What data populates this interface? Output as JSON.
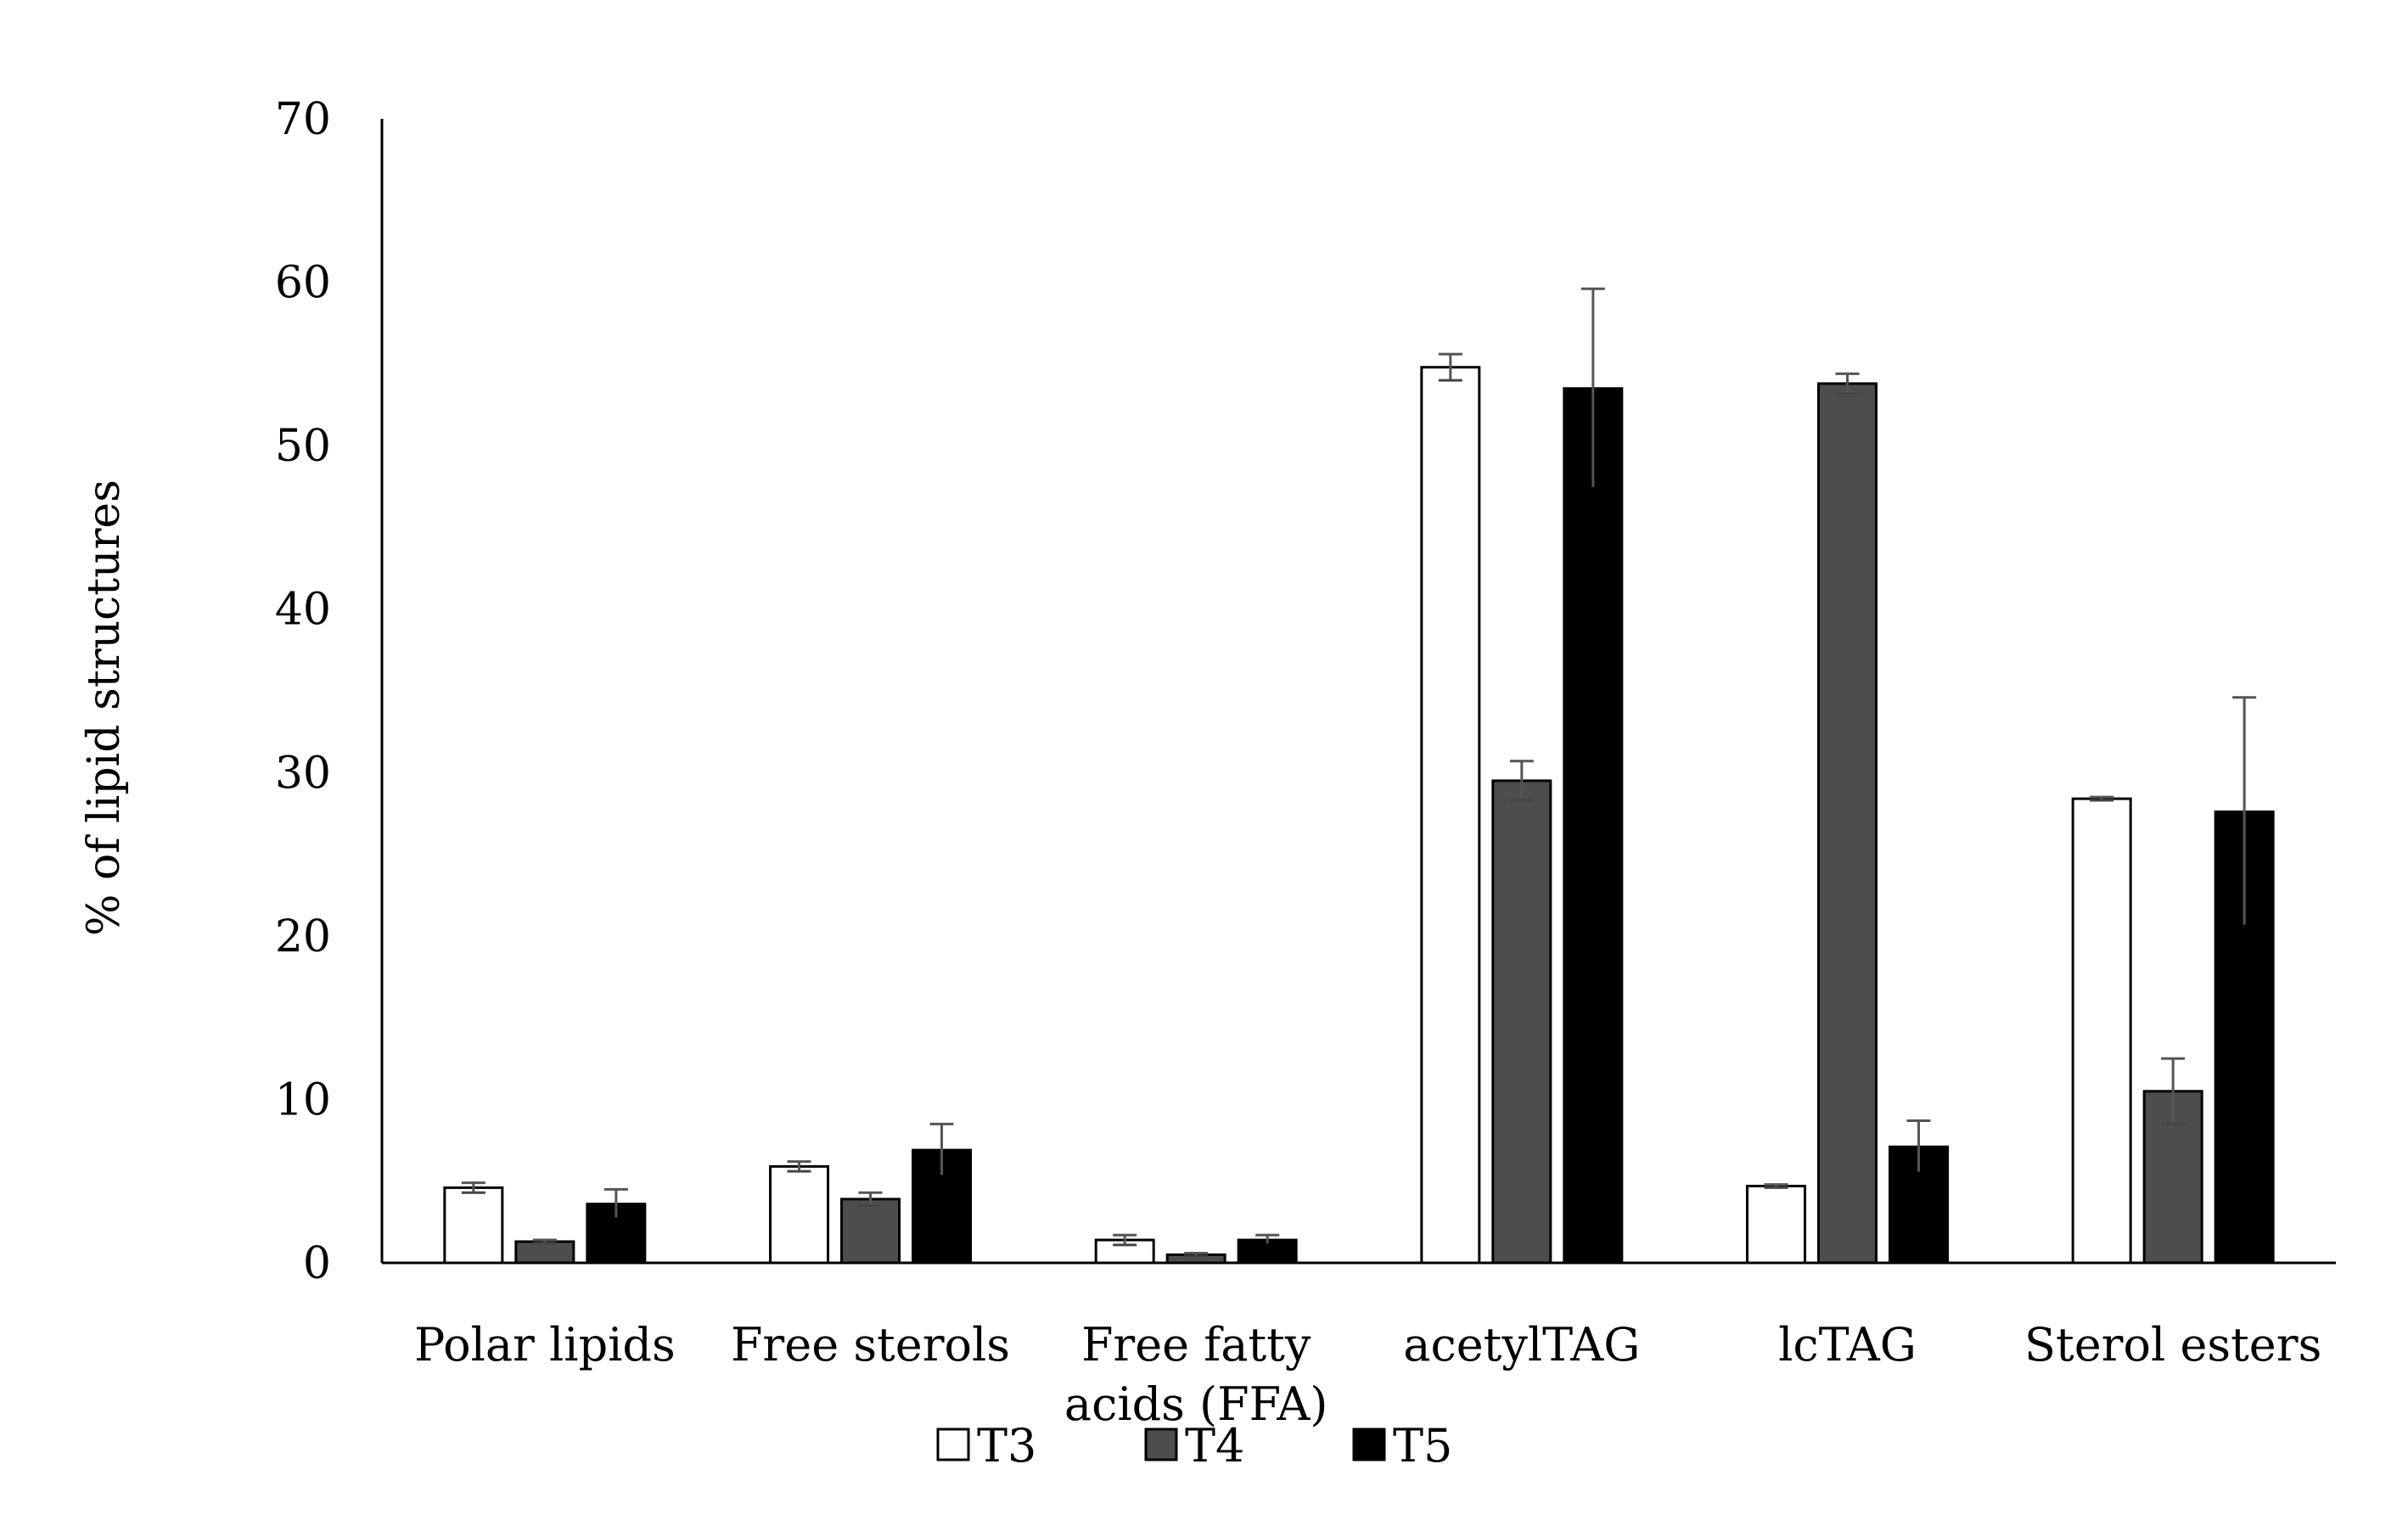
{
  "chart_data": {
    "type": "bar",
    "title": "",
    "xlabel": "",
    "ylabel": "% of lipid structures",
    "ylim": [
      0,
      70
    ],
    "yticks": [
      0,
      10,
      20,
      30,
      40,
      50,
      60,
      70
    ],
    "grid": false,
    "legend_position": "bottom",
    "categories": [
      [
        "Polar lipids"
      ],
      [
        "Free sterols"
      ],
      [
        "Free fatty",
        "acids (FFA)"
      ],
      [
        "acetylTAG"
      ],
      [
        "lcTAG"
      ],
      [
        "Sterol esters"
      ]
    ],
    "series": [
      {
        "name": "T3",
        "color": "#ffffff",
        "values": [
          4.6,
          5.9,
          1.4,
          54.8,
          4.7,
          28.4
        ],
        "errors": [
          0.3,
          0.3,
          0.3,
          0.8,
          0.1,
          0.1
        ]
      },
      {
        "name": "T4",
        "color": "#4d4d4d",
        "values": [
          1.3,
          3.9,
          0.5,
          29.5,
          53.8,
          10.5
        ],
        "errors": [
          0.1,
          0.4,
          0.1,
          1.2,
          0.6,
          2.0
        ]
      },
      {
        "name": "T5",
        "color": "#000000",
        "values": [
          3.6,
          6.9,
          1.4,
          53.5,
          7.1,
          27.6
        ],
        "errors": [
          0.9,
          1.6,
          0.3,
          6.1,
          1.6,
          7.0
        ]
      }
    ]
  }
}
